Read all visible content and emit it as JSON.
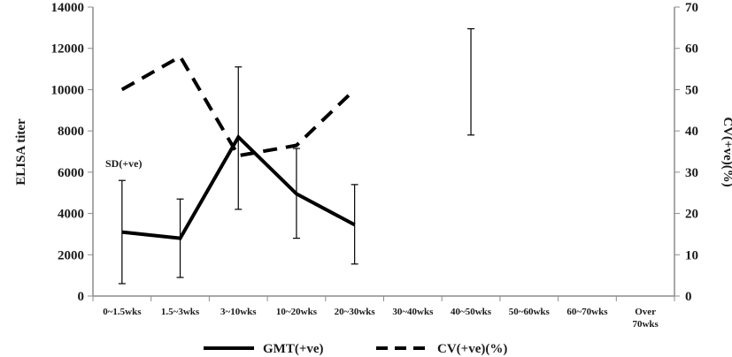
{
  "chart_data": {
    "type": "line",
    "categories": [
      "0~1.5wks",
      "1.5~3wks",
      "3~10wks",
      "10~20wks",
      "20~30wks",
      "30~40wks",
      "40~50wks",
      "50~60wks",
      "60~70wks",
      "Over 70wks"
    ],
    "category_lines": [
      [
        "0~1.5wks"
      ],
      [
        "1.5~3wks"
      ],
      [
        "3~10wks"
      ],
      [
        "10~20wks"
      ],
      [
        "20~30wks"
      ],
      [
        "30~40wks"
      ],
      [
        "40~50wks"
      ],
      [
        "50~60wks"
      ],
      [
        "60~70wks"
      ],
      [
        "Over",
        "70wks"
      ]
    ],
    "ylabel": "ELISA titer",
    "ylabel_right": "CV(+ve)(%)",
    "ylim": [
      0,
      14000
    ],
    "y_ticks": [
      "0",
      "2000",
      "4000",
      "6000",
      "8000",
      "10000",
      "12000",
      "14000"
    ],
    "ylim_right": [
      0,
      70
    ],
    "y_ticks_right": [
      "0",
      "10",
      "20",
      "30",
      "40",
      "50",
      "60",
      "70"
    ],
    "grid": false,
    "legend_position": "bottom",
    "annotation": "SD(+ve)",
    "series": [
      {
        "name": "GMT(+ve)",
        "axis": "left",
        "style": "solid",
        "values": [
          3100,
          2800,
          7700,
          4950,
          3450,
          null,
          null,
          null,
          null,
          null
        ]
      },
      {
        "name": "CV(+ve)(%)",
        "axis": "right",
        "style": "dashed",
        "values": [
          50,
          58,
          34,
          36.5,
          50,
          null,
          null,
          null,
          null,
          null
        ]
      }
    ],
    "error_bars": [
      {
        "category": "0~1.5wks",
        "low": 600,
        "high": 5600
      },
      {
        "category": "1.5~3wks",
        "low": 900,
        "high": 4700
      },
      {
        "category": "3~10wks",
        "low": 4200,
        "high": 11100
      },
      {
        "category": "10~20wks",
        "low": 2800,
        "high": 7150
      },
      {
        "category": "20~30wks",
        "low": 1550,
        "high": 5400
      },
      {
        "category": "40~50wks",
        "low": 7800,
        "high": 12950
      }
    ],
    "colors": {
      "axis": "#8c8c8c",
      "line": "#000000",
      "text": "#1a1a1a"
    }
  }
}
